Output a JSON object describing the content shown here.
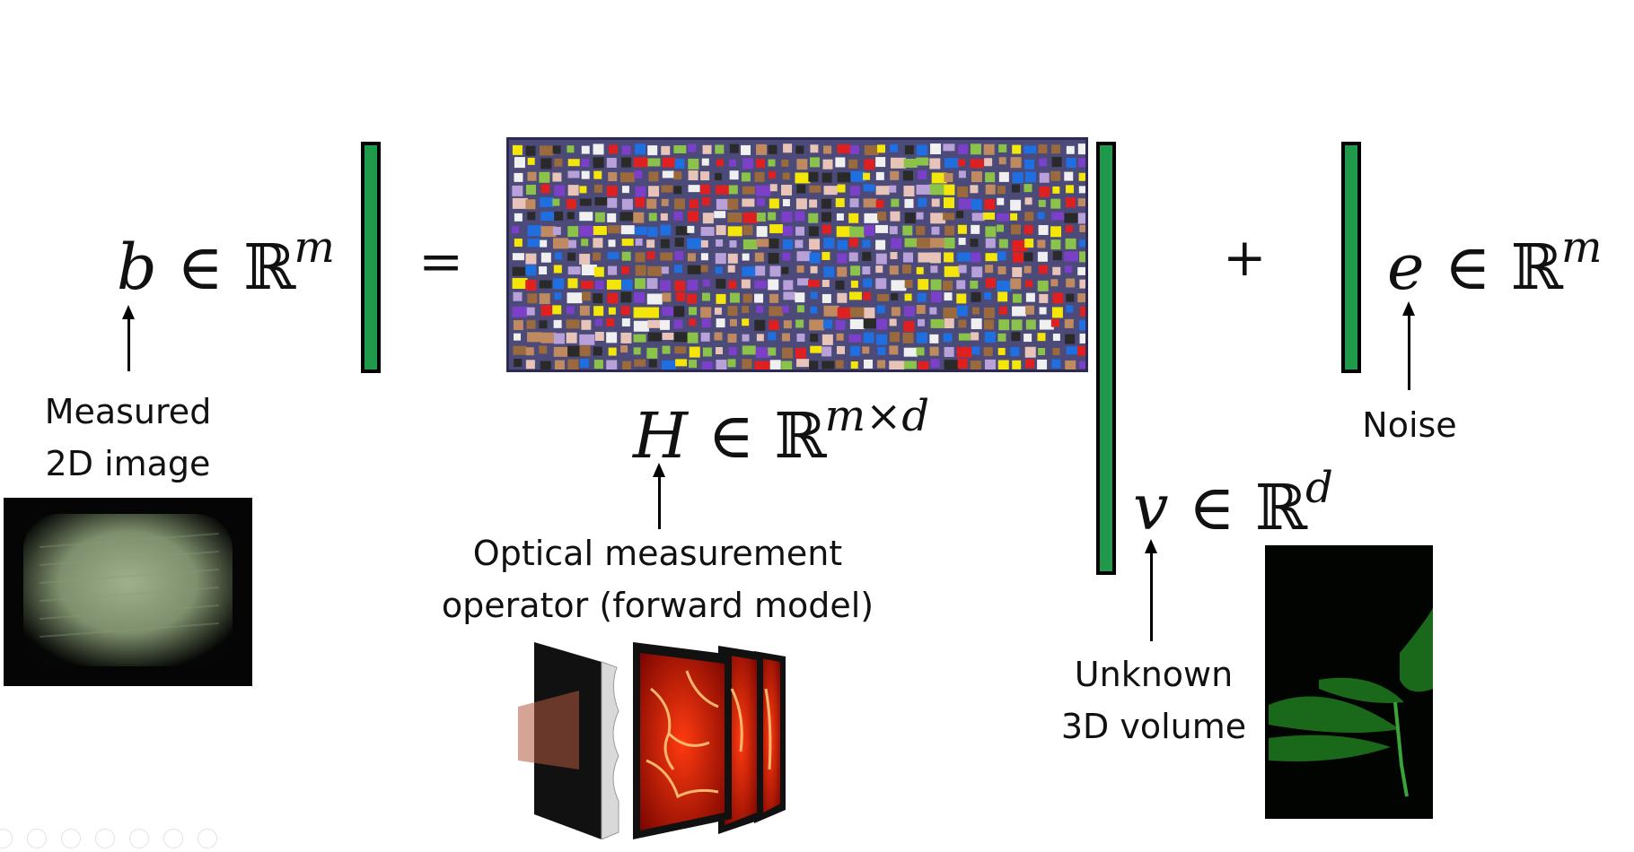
{
  "equation": {
    "b_term": {
      "symbol": "b",
      "set": "ℝ",
      "exp": "m"
    },
    "equals": "=",
    "h_term": {
      "symbol": "H",
      "set": "ℝ",
      "exp": "m×d"
    },
    "v_term": {
      "symbol": "v",
      "set": "ℝ",
      "exp": "d"
    },
    "plus": "+",
    "e_term": {
      "symbol": "e",
      "set": "ℝ",
      "exp": "m"
    },
    "in_symbol": "∈"
  },
  "labels": {
    "measured_line1": "Measured",
    "measured_line2": "2D image",
    "operator_line1": "Optical measurement",
    "operator_line2": "operator (forward model)",
    "noise": "Noise",
    "unknown_line1": "Unknown",
    "unknown_line2": "3D volume"
  },
  "colors": {
    "vector_green": "#1f9a4a",
    "matrix_background": "#4b4a78",
    "matrix_cells": [
      "#e8c4b8",
      "#1f6fe0",
      "#e02020",
      "#8bc34a",
      "#f0f0f0",
      "#7b3fc8",
      "#9a6a3c",
      "#f5e60a",
      "#b8a0d8",
      "#2a2a2a",
      "#c08a60"
    ]
  },
  "icons": {
    "measured_image": "blurry-green-grid-photo",
    "volume_image": "green-fluorescent-plant-photo",
    "optics_illustration": "phase-mask-and-focal-stack-icon"
  }
}
